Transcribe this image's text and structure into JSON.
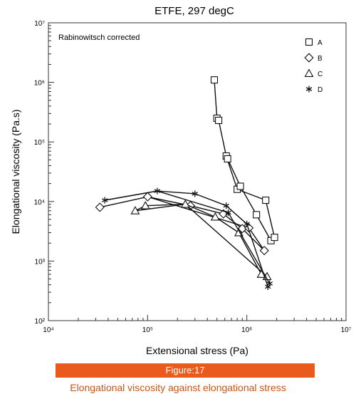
{
  "chart_data": {
    "type": "line",
    "title": "ETFE, 297 degC",
    "annotation": "Rabinowitsch corrected",
    "xlabel": "Extensional stress (Pa)",
    "ylabel": "Elongational viscosity (Pa.s)",
    "x_scale": "log",
    "y_scale": "log",
    "xlim": [
      10000,
      10000000
    ],
    "ylim": [
      100,
      10000000
    ],
    "x_tick_labels": [
      "10⁴",
      "10⁵",
      "10⁶",
      "10⁷"
    ],
    "y_tick_labels": [
      "10²",
      "10³",
      "10⁴",
      "10⁵",
      "10⁶",
      "10⁷"
    ],
    "legend_position": "top-right",
    "grid": false,
    "series": [
      {
        "name": "A",
        "marker": "square",
        "points": [
          [
            470000,
            1100000
          ],
          [
            500000,
            250000
          ],
          [
            520000,
            230000
          ],
          [
            620000,
            58000
          ],
          [
            640000,
            52000
          ],
          [
            800000,
            16000
          ],
          [
            860000,
            18000
          ],
          [
            1250000,
            6000
          ],
          [
            1550000,
            10500
          ],
          [
            1750000,
            2200
          ],
          [
            1900000,
            2500
          ]
        ],
        "segments": [
          [
            0,
            1
          ],
          [
            1,
            2
          ],
          [
            2,
            3
          ],
          [
            3,
            4
          ],
          [
            3,
            5
          ],
          [
            4,
            6
          ],
          [
            5,
            8
          ],
          [
            6,
            7
          ],
          [
            7,
            9
          ],
          [
            8,
            10
          ]
        ]
      },
      {
        "name": "B",
        "marker": "diamond",
        "points": [
          [
            33000,
            8000
          ],
          [
            100000,
            12000
          ],
          [
            270000,
            8500
          ],
          [
            580000,
            6200
          ],
          [
            900000,
            3500
          ],
          [
            1050000,
            3600
          ],
          [
            1500000,
            1500
          ]
        ],
        "segments": [
          [
            0,
            1
          ],
          [
            1,
            2
          ],
          [
            2,
            3
          ],
          [
            3,
            4
          ],
          [
            4,
            6
          ],
          [
            1,
            5
          ],
          [
            5,
            6
          ]
        ]
      },
      {
        "name": "C",
        "marker": "triangle",
        "points": [
          [
            75000,
            7000
          ],
          [
            95000,
            8500
          ],
          [
            240000,
            9000
          ],
          [
            480000,
            5500
          ],
          [
            830000,
            3000
          ],
          [
            1400000,
            600
          ],
          [
            1600000,
            550
          ]
        ],
        "segments": [
          [
            0,
            1
          ],
          [
            1,
            2
          ],
          [
            2,
            3
          ],
          [
            3,
            4
          ],
          [
            4,
            5
          ],
          [
            0,
            2
          ],
          [
            2,
            6
          ]
        ]
      },
      {
        "name": "D",
        "marker": "star",
        "points": [
          [
            37000,
            10500
          ],
          [
            125000,
            15000
          ],
          [
            300000,
            13500
          ],
          [
            620000,
            8500
          ],
          [
            650000,
            6500
          ],
          [
            1000000,
            4200
          ],
          [
            1630000,
            370
          ],
          [
            1700000,
            420
          ]
        ],
        "segments": [
          [
            0,
            1
          ],
          [
            1,
            2
          ],
          [
            2,
            3
          ],
          [
            3,
            5
          ],
          [
            5,
            6
          ],
          [
            0,
            1
          ],
          [
            1,
            4
          ],
          [
            4,
            7
          ]
        ]
      }
    ]
  },
  "figure": {
    "number_label": "Figure:17",
    "caption": "Elongational viscosity against elongational stress"
  }
}
